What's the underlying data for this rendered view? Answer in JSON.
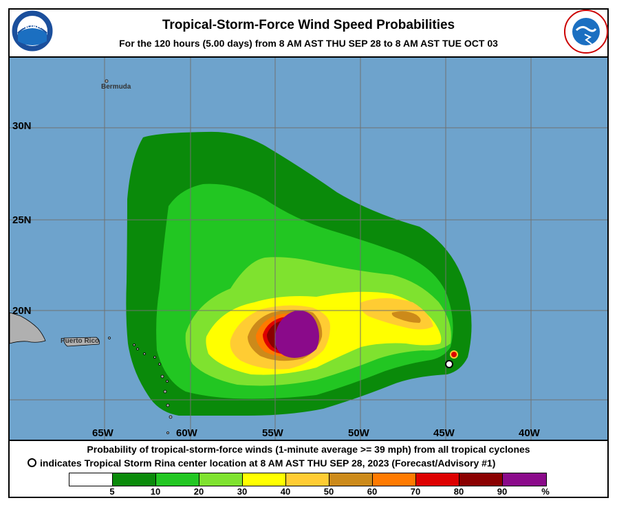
{
  "header": {
    "title": "Tropical-Storm-Force Wind Speed Probabilities",
    "subtitle": "For the 120 hours (5.00 days) from 8 AM AST THU SEP 28 to 8 AM AST TUE OCT 03",
    "left_logo_text": "NOAA",
    "right_logo_text": "NATIONAL WEATHER SERVICE",
    "left_logo_icon": "noaa-logo-icon",
    "right_logo_icon": "nws-logo-icon"
  },
  "map": {
    "ocean_color": "#6ea3cc",
    "land_color": "#b0b0b0",
    "latitude_labels": [
      "30N",
      "25N",
      "20N"
    ],
    "longitude_labels": [
      "65W",
      "60W",
      "55W",
      "50W",
      "45W",
      "40W"
    ],
    "place_labels": {
      "bermuda": "Bermuda",
      "puerto_rico": "Puerto Rico"
    },
    "storm_marker": {
      "name": "Tropical Storm Rina",
      "icon": "storm-center-marker-icon"
    }
  },
  "caption": {
    "line1": "Probability of tropical-storm-force winds (1-minute average >= 39 mph) from all tropical cyclones",
    "line2": "indicates Tropical Storm Rina center location at 8 AM AST THU SEP 28, 2023 (Forecast/Advisory #1)"
  },
  "legend": {
    "colors": [
      "#ffffff",
      "#0a8a0a",
      "#22c622",
      "#7fe22f",
      "#ffff00",
      "#ffcc33",
      "#cc8a1a",
      "#ff7a00",
      "#dd0000",
      "#8a0000",
      "#8a0a8a"
    ],
    "ticks": [
      "5",
      "10",
      "20",
      "30",
      "40",
      "50",
      "60",
      "70",
      "80",
      "90",
      "%"
    ]
  }
}
